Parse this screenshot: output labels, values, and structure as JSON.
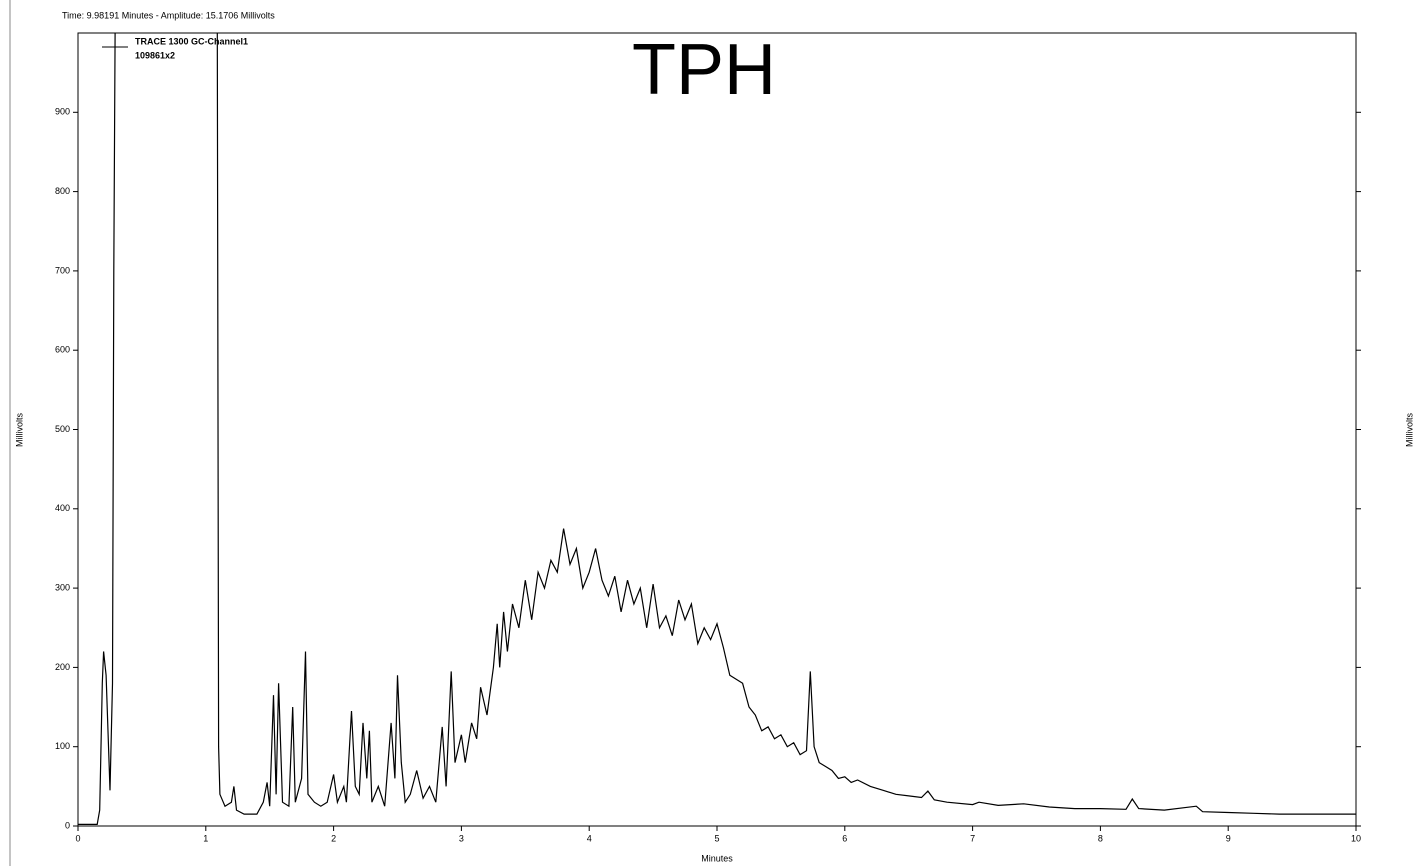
{
  "chart_data": {
    "type": "line",
    "header": "Time:  9.98191 Minutes - Amplitude:  15.1706 Millivolts",
    "title": "TPH",
    "x_label": "Minutes",
    "y_label": "Millivolts",
    "y2_label": "Millivolts",
    "xlim": [
      0,
      10
    ],
    "ylim": [
      0,
      1000
    ],
    "xticks": [
      0,
      1,
      2,
      3,
      4,
      5,
      6,
      7,
      8,
      9,
      10
    ],
    "yticks": [
      0,
      100,
      200,
      300,
      400,
      500,
      600,
      700,
      800,
      900
    ],
    "series": [
      {
        "name": "TRACE 1300 GC-Channel1",
        "sample": "109861x2",
        "color": "#000000",
        "x": [
          0,
          0.15,
          0.17,
          0.19,
          0.2,
          0.22,
          0.25,
          0.27,
          0.28,
          0.29,
          0.7,
          1.09,
          1.1,
          1.11,
          1.15,
          1.2,
          1.22,
          1.24,
          1.3,
          1.4,
          1.45,
          1.48,
          1.5,
          1.53,
          1.55,
          1.57,
          1.6,
          1.65,
          1.68,
          1.7,
          1.75,
          1.78,
          1.8,
          1.85,
          1.9,
          1.95,
          2.0,
          2.03,
          2.08,
          2.1,
          2.14,
          2.17,
          2.2,
          2.23,
          2.26,
          2.28,
          2.3,
          2.35,
          2.4,
          2.45,
          2.48,
          2.5,
          2.53,
          2.56,
          2.6,
          2.65,
          2.7,
          2.75,
          2.8,
          2.85,
          2.88,
          2.92,
          2.95,
          3.0,
          3.03,
          3.08,
          3.12,
          3.15,
          3.2,
          3.25,
          3.28,
          3.3,
          3.33,
          3.36,
          3.4,
          3.45,
          3.5,
          3.55,
          3.6,
          3.65,
          3.7,
          3.75,
          3.8,
          3.85,
          3.9,
          3.95,
          4.0,
          4.05,
          4.1,
          4.15,
          4.2,
          4.25,
          4.3,
          4.35,
          4.4,
          4.45,
          4.5,
          4.55,
          4.6,
          4.65,
          4.7,
          4.75,
          4.8,
          4.85,
          4.9,
          4.95,
          5.0,
          5.05,
          5.1,
          5.15,
          5.2,
          5.25,
          5.3,
          5.35,
          5.4,
          5.45,
          5.5,
          5.55,
          5.6,
          5.65,
          5.7,
          5.73,
          5.76,
          5.8,
          5.85,
          5.9,
          5.95,
          6.0,
          6.05,
          6.1,
          6.2,
          6.3,
          6.4,
          6.5,
          6.6,
          6.65,
          6.7,
          6.8,
          7.0,
          7.05,
          7.2,
          7.4,
          7.6,
          7.8,
          8.0,
          8.2,
          8.25,
          8.3,
          8.5,
          8.75,
          8.8,
          9.0,
          9.2,
          9.4,
          9.6,
          9.8,
          10.0
        ],
        "values": [
          2,
          2,
          20,
          180,
          220,
          190,
          45,
          180,
          700,
          1000,
          null,
          1000,
          100,
          40,
          25,
          30,
          50,
          20,
          15,
          15,
          30,
          55,
          25,
          165,
          40,
          180,
          30,
          25,
          150,
          30,
          60,
          220,
          40,
          30,
          25,
          30,
          65,
          30,
          50,
          30,
          145,
          50,
          40,
          130,
          60,
          120,
          30,
          50,
          25,
          130,
          60,
          190,
          80,
          30,
          40,
          70,
          35,
          50,
          30,
          125,
          50,
          195,
          80,
          115,
          80,
          130,
          110,
          175,
          140,
          200,
          255,
          200,
          270,
          220,
          280,
          250,
          310,
          260,
          320,
          300,
          335,
          320,
          375,
          330,
          350,
          300,
          320,
          350,
          310,
          290,
          315,
          270,
          310,
          280,
          300,
          250,
          305,
          250,
          265,
          240,
          285,
          260,
          280,
          230,
          250,
          235,
          255,
          225,
          190,
          185,
          180,
          150,
          140,
          120,
          125,
          110,
          115,
          100,
          105,
          90,
          95,
          195,
          100,
          80,
          75,
          70,
          60,
          62,
          55,
          58,
          50,
          45,
          40,
          38,
          36,
          44,
          33,
          30,
          27,
          30,
          26,
          28,
          24,
          22,
          22,
          21,
          34,
          22,
          20,
          25,
          18,
          17,
          16,
          15,
          15,
          15,
          15
        ]
      }
    ]
  }
}
